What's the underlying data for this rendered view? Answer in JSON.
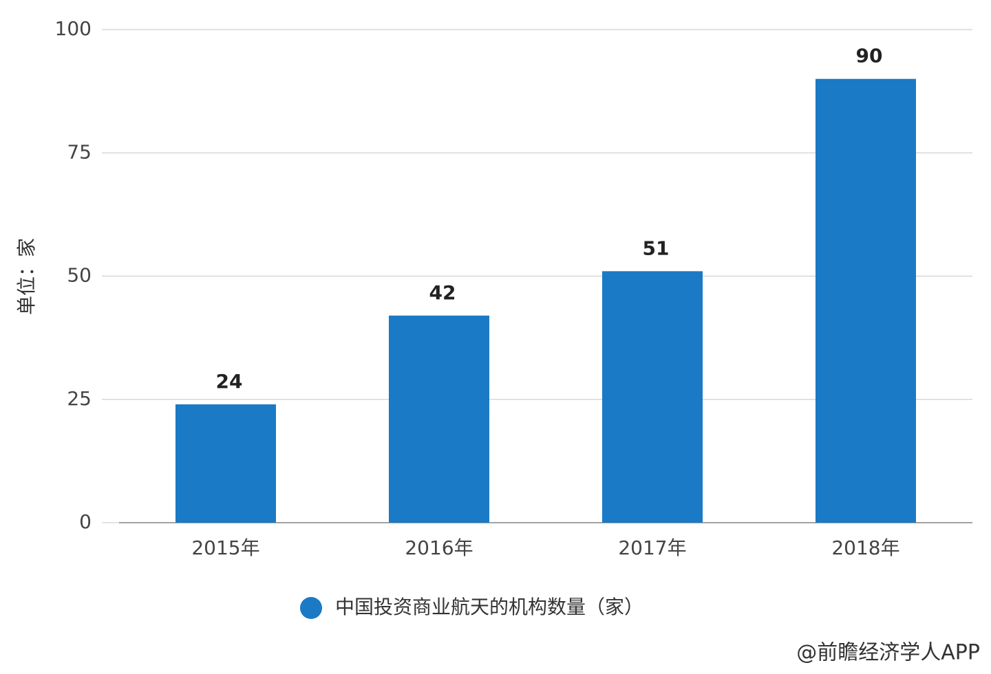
{
  "chart_data": {
    "type": "bar",
    "y_axis_label": "单位：家",
    "categories": [
      "2015年",
      "2016年",
      "2017年",
      "2018年"
    ],
    "series": [
      {
        "name": "中国投资商业航天的机构数量（家）",
        "color": "#1a7ac6",
        "values": [
          24,
          42,
          51,
          90
        ]
      }
    ],
    "ylim": [
      0,
      100
    ],
    "yticks": [
      0,
      25,
      50,
      75,
      100
    ],
    "grid": true,
    "source": "@前瞻经济学人APP"
  }
}
